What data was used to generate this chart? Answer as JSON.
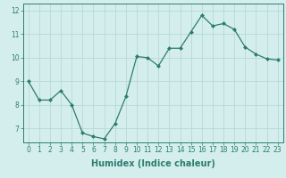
{
  "x": [
    0,
    1,
    2,
    3,
    4,
    5,
    6,
    7,
    8,
    9,
    10,
    11,
    12,
    13,
    14,
    15,
    16,
    17,
    18,
    19,
    20,
    21,
    22,
    23
  ],
  "y": [
    9.0,
    8.2,
    8.2,
    8.6,
    8.0,
    6.8,
    6.65,
    6.55,
    7.2,
    8.35,
    10.05,
    10.0,
    9.65,
    10.4,
    10.4,
    11.1,
    11.8,
    11.35,
    11.45,
    11.2,
    10.45,
    10.15,
    9.95,
    9.9
  ],
  "line_color": "#2d7d6e",
  "marker": "D",
  "markersize": 2.0,
  "linewidth": 0.9,
  "bg_color": "#d4eeee",
  "grid_color": "#b8d8d8",
  "xlabel": "Humidex (Indice chaleur)",
  "xlabel_fontsize": 7,
  "ylim": [
    6.4,
    12.3
  ],
  "xlim": [
    -0.5,
    23.5
  ],
  "yticks": [
    7,
    8,
    9,
    10,
    11,
    12
  ],
  "xticks": [
    0,
    1,
    2,
    3,
    4,
    5,
    6,
    7,
    8,
    9,
    10,
    11,
    12,
    13,
    14,
    15,
    16,
    17,
    18,
    19,
    20,
    21,
    22,
    23
  ],
  "tick_fontsize": 5.5
}
